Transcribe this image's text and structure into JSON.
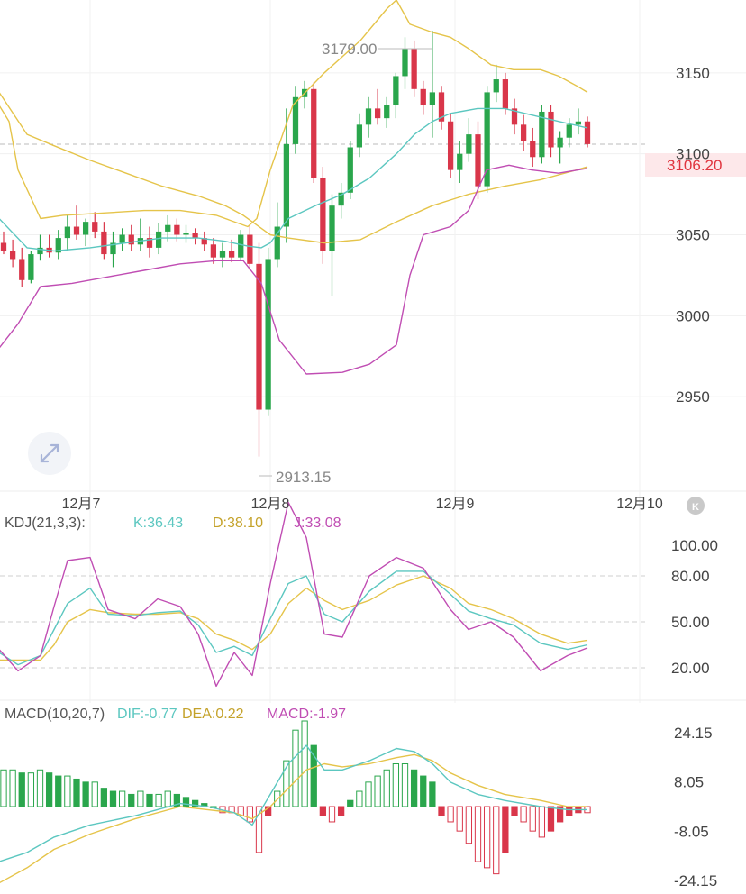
{
  "colors": {
    "up": "#2aa64c",
    "down": "#d9364a",
    "boll_upper": "#e5c44a",
    "boll_mid": "#5cc7c0",
    "boll_lower": "#c04db3",
    "k": "#5cc7c0",
    "d": "#e5c44a",
    "j": "#c04db3",
    "dif": "#5cc7c0",
    "dea": "#e5c44a",
    "macd": "#c04db3",
    "price_tag": "#e0353f"
  },
  "icons": {
    "expand": "expand-arrows-icon",
    "k_badge": "k-badge-icon"
  },
  "chart_data": [
    {
      "type": "candlestick",
      "ylim": [
        2900,
        3195
      ],
      "yticks": [
        "3150",
        "3100",
        "3050",
        "3000",
        "2950"
      ],
      "xticks": [
        "12月7",
        "12月8",
        "12月9",
        "12月10"
      ],
      "current_price": "3106.20",
      "high_annotation": "3179.00",
      "low_annotation": "2913.15",
      "candles": [
        [
          3045,
          3052,
          3038,
          3040
        ],
        [
          3040,
          3047,
          3030,
          3035
        ],
        [
          3035,
          3042,
          3018,
          3022
        ],
        [
          3022,
          3040,
          3020,
          3038
        ],
        [
          3038,
          3050,
          3034,
          3042
        ],
        [
          3042,
          3050,
          3036,
          3039
        ],
        [
          3039,
          3053,
          3035,
          3048
        ],
        [
          3048,
          3062,
          3040,
          3055
        ],
        [
          3055,
          3068,
          3047,
          3050
        ],
        [
          3050,
          3060,
          3043,
          3058
        ],
        [
          3058,
          3064,
          3048,
          3052
        ],
        [
          3052,
          3058,
          3035,
          3038
        ],
        [
          3038,
          3052,
          3030,
          3045
        ],
        [
          3045,
          3054,
          3040,
          3050
        ],
        [
          3050,
          3056,
          3040,
          3044
        ],
        [
          3044,
          3060,
          3040,
          3048
        ],
        [
          3048,
          3055,
          3036,
          3042
        ],
        [
          3042,
          3057,
          3038,
          3052
        ],
        [
          3052,
          3062,
          3046,
          3056
        ],
        [
          3056,
          3060,
          3046,
          3050
        ],
        [
          3050,
          3056,
          3045,
          3051
        ],
        [
          3051,
          3054,
          3044,
          3048
        ],
        [
          3048,
          3052,
          3040,
          3044
        ],
        [
          3044,
          3048,
          3032,
          3036
        ],
        [
          3036,
          3045,
          3030,
          3040
        ],
        [
          3040,
          3047,
          3033,
          3036
        ],
        [
          3036,
          3053,
          3034,
          3050
        ],
        [
          3050,
          3056,
          3028,
          3032
        ],
        [
          3032,
          3045,
          2913,
          2942
        ],
        [
          2942,
          3042,
          2938,
          3035
        ],
        [
          3035,
          3070,
          3030,
          3055
        ],
        [
          3055,
          3128,
          3045,
          3106
        ],
        [
          3106,
          3142,
          3100,
          3135
        ],
        [
          3135,
          3145,
          3128,
          3140
        ],
        [
          3140,
          3144,
          3082,
          3085
        ],
        [
          3085,
          3092,
          3032,
          3040
        ],
        [
          3040,
          3075,
          3012,
          3068
        ],
        [
          3068,
          3082,
          3060,
          3076
        ],
        [
          3076,
          3108,
          3072,
          3104
        ],
        [
          3104,
          3125,
          3098,
          3118
        ],
        [
          3118,
          3135,
          3110,
          3128
        ],
        [
          3128,
          3140,
          3118,
          3122
        ],
        [
          3122,
          3135,
          3116,
          3130
        ],
        [
          3130,
          3150,
          3122,
          3148
        ],
        [
          3148,
          3172,
          3140,
          3165
        ],
        [
          3165,
          3170,
          3135,
          3140
        ],
        [
          3140,
          3145,
          3124,
          3130
        ],
        [
          3130,
          3176,
          3110,
          3138
        ],
        [
          3138,
          3142,
          3115,
          3120
        ],
        [
          3120,
          3125,
          3085,
          3090
        ],
        [
          3090,
          3108,
          3082,
          3100
        ],
        [
          3100,
          3122,
          3095,
          3112
        ],
        [
          3112,
          3120,
          3072,
          3080
        ],
        [
          3080,
          3142,
          3076,
          3138
        ],
        [
          3138,
          3155,
          3132,
          3146
        ],
        [
          3146,
          3150,
          3124,
          3128
        ],
        [
          3128,
          3134,
          3112,
          3118
        ],
        [
          3118,
          3124,
          3102,
          3108
        ],
        [
          3108,
          3116,
          3092,
          3098
        ],
        [
          3098,
          3130,
          3094,
          3126
        ],
        [
          3126,
          3130,
          3098,
          3104
        ],
        [
          3104,
          3114,
          3094,
          3110
        ],
        [
          3110,
          3122,
          3104,
          3118
        ],
        [
          3118,
          3128,
          3112,
          3120
        ],
        [
          3120,
          3123,
          3104,
          3106
        ]
      ],
      "boll_upper": [
        [
          -1,
          3130
        ],
        [
          10,
          3120
        ],
        [
          20,
          3090
        ],
        [
          45,
          3060
        ],
        [
          70,
          3062
        ],
        [
          100,
          3063
        ],
        [
          160,
          3065
        ],
        [
          200,
          3065
        ],
        [
          240,
          3062
        ],
        [
          275,
          3055
        ],
        [
          285,
          3060
        ],
        [
          300,
          3090
        ],
        [
          325,
          3130
        ],
        [
          360,
          3150
        ],
        [
          400,
          3170
        ],
        [
          430,
          3190
        ],
        [
          440,
          3195
        ],
        [
          455,
          3180
        ],
        [
          480,
          3175
        ],
        [
          500,
          3172
        ],
        [
          520,
          3165
        ],
        [
          545,
          3155
        ],
        [
          570,
          3152
        ],
        [
          600,
          3152
        ],
        [
          620,
          3148
        ],
        [
          640,
          3142
        ],
        [
          652,
          3138
        ]
      ],
      "boll_mid": [
        [
          -1,
          3060
        ],
        [
          30,
          3042
        ],
        [
          60,
          3040
        ],
        [
          100,
          3042
        ],
        [
          140,
          3045
        ],
        [
          180,
          3048
        ],
        [
          220,
          3048
        ],
        [
          250,
          3046
        ],
        [
          275,
          3043
        ],
        [
          290,
          3042
        ],
        [
          300,
          3045
        ],
        [
          320,
          3060
        ],
        [
          350,
          3068
        ],
        [
          380,
          3075
        ],
        [
          410,
          3085
        ],
        [
          440,
          3100
        ],
        [
          460,
          3112
        ],
        [
          480,
          3120
        ],
        [
          500,
          3125
        ],
        [
          530,
          3128
        ],
        [
          560,
          3128
        ],
        [
          590,
          3124
        ],
        [
          620,
          3120
        ],
        [
          652,
          3116
        ]
      ],
      "boll_lower": [
        [
          -1,
          2980
        ],
        [
          20,
          2995
        ],
        [
          45,
          3018
        ],
        [
          80,
          3020
        ],
        [
          120,
          3024
        ],
        [
          160,
          3028
        ],
        [
          200,
          3032
        ],
        [
          240,
          3034
        ],
        [
          270,
          3034
        ],
        [
          290,
          3020
        ],
        [
          310,
          2985
        ],
        [
          340,
          2964
        ],
        [
          380,
          2965
        ],
        [
          410,
          2970
        ],
        [
          440,
          2982
        ],
        [
          455,
          3025
        ],
        [
          470,
          3050
        ],
        [
          500,
          3055
        ],
        [
          520,
          3065
        ],
        [
          540,
          3090
        ],
        [
          565,
          3093
        ],
        [
          590,
          3090
        ],
        [
          620,
          3088
        ],
        [
          652,
          3091
        ]
      ],
      "boll_outer": [
        [
          -1,
          3138
        ],
        [
          30,
          3112
        ],
        [
          60,
          3105
        ],
        [
          100,
          3096
        ],
        [
          140,
          3088
        ],
        [
          180,
          3080
        ],
        [
          220,
          3074
        ],
        [
          250,
          3068
        ],
        [
          270,
          3062
        ],
        [
          300,
          3050
        ],
        [
          320,
          3048
        ],
        [
          360,
          3045
        ],
        [
          400,
          3047
        ],
        [
          440,
          3058
        ],
        [
          480,
          3068
        ],
        [
          520,
          3075
        ],
        [
          560,
          3080
        ],
        [
          600,
          3084
        ],
        [
          640,
          3090
        ],
        [
          652,
          3092
        ]
      ]
    },
    {
      "type": "line",
      "title": "KDJ(21,3,3):",
      "series": [
        {
          "name": "K",
          "value": "36.43"
        },
        {
          "name": "D",
          "value": "38.10"
        },
        {
          "name": "J",
          "value": "33.08"
        }
      ],
      "ylim": [
        0,
        110
      ],
      "yticks": [
        "100.00",
        "80.00",
        "50.00",
        "20.00"
      ],
      "k_line": [
        [
          -1,
          30
        ],
        [
          20,
          22
        ],
        [
          45,
          28
        ],
        [
          60,
          45
        ],
        [
          75,
          62
        ],
        [
          100,
          72
        ],
        [
          120,
          55
        ],
        [
          150,
          54
        ],
        [
          175,
          56
        ],
        [
          200,
          57
        ],
        [
          220,
          48
        ],
        [
          240,
          30
        ],
        [
          260,
          34
        ],
        [
          280,
          28
        ],
        [
          300,
          52
        ],
        [
          320,
          75
        ],
        [
          340,
          80
        ],
        [
          360,
          55
        ],
        [
          380,
          50
        ],
        [
          410,
          70
        ],
        [
          440,
          83
        ],
        [
          470,
          83
        ],
        [
          500,
          68
        ],
        [
          520,
          57
        ],
        [
          545,
          52
        ],
        [
          570,
          48
        ],
        [
          600,
          36
        ],
        [
          630,
          32
        ],
        [
          652,
          35
        ]
      ],
      "d_line": [
        [
          -1,
          25
        ],
        [
          20,
          25
        ],
        [
          45,
          25
        ],
        [
          60,
          35
        ],
        [
          75,
          50
        ],
        [
          100,
          58
        ],
        [
          120,
          56
        ],
        [
          150,
          55
        ],
        [
          175,
          55
        ],
        [
          200,
          56
        ],
        [
          220,
          52
        ],
        [
          240,
          42
        ],
        [
          260,
          38
        ],
        [
          280,
          32
        ],
        [
          300,
          42
        ],
        [
          320,
          62
        ],
        [
          340,
          72
        ],
        [
          360,
          64
        ],
        [
          380,
          58
        ],
        [
          410,
          64
        ],
        [
          440,
          74
        ],
        [
          470,
          80
        ],
        [
          500,
          72
        ],
        [
          520,
          62
        ],
        [
          545,
          58
        ],
        [
          570,
          52
        ],
        [
          600,
          42
        ],
        [
          630,
          36
        ],
        [
          652,
          38
        ]
      ],
      "j_line": [
        [
          -1,
          32
        ],
        [
          20,
          18
        ],
        [
          45,
          28
        ],
        [
          60,
          60
        ],
        [
          75,
          90
        ],
        [
          100,
          92
        ],
        [
          120,
          58
        ],
        [
          150,
          52
        ],
        [
          175,
          65
        ],
        [
          200,
          60
        ],
        [
          220,
          42
        ],
        [
          240,
          8
        ],
        [
          260,
          30
        ],
        [
          280,
          15
        ],
        [
          300,
          75
        ],
        [
          320,
          128
        ],
        [
          340,
          105
        ],
        [
          360,
          42
        ],
        [
          380,
          40
        ],
        [
          410,
          80
        ],
        [
          440,
          92
        ],
        [
          470,
          85
        ],
        [
          500,
          58
        ],
        [
          520,
          45
        ],
        [
          545,
          50
        ],
        [
          570,
          40
        ],
        [
          600,
          18
        ],
        [
          630,
          28
        ],
        [
          652,
          33
        ]
      ]
    },
    {
      "type": "bar",
      "title": "MACD(10,20,7)",
      "series": [
        {
          "name": "DIF",
          "value": "-0.77"
        },
        {
          "name": "DEA",
          "value": "0.22"
        },
        {
          "name": "MACD",
          "value": "-1.97"
        }
      ],
      "ylim": [
        -28,
        28
      ],
      "yticks": [
        "24.15",
        "8.05",
        "-8.05",
        "-24.15"
      ],
      "histogram": [
        12,
        12,
        11,
        11,
        12,
        11,
        10,
        10,
        9,
        8,
        8,
        6,
        5,
        5,
        4,
        5,
        4,
        4,
        5,
        4,
        3,
        2,
        1,
        0,
        -2,
        -2,
        -3,
        -5,
        -15,
        -3,
        5,
        15,
        25,
        28,
        20,
        -3,
        -5,
        -3,
        2,
        5,
        8,
        10,
        12,
        14,
        14,
        12,
        10,
        8,
        -3,
        -5,
        -8,
        -12,
        -18,
        -20,
        -22,
        -15,
        -3,
        -5,
        -8,
        -10,
        -8,
        -5,
        -3,
        -2,
        -2
      ],
      "dif_line": [
        [
          -1,
          -18
        ],
        [
          30,
          -15
        ],
        [
          60,
          -10
        ],
        [
          100,
          -6
        ],
        [
          150,
          -3
        ],
        [
          200,
          1
        ],
        [
          230,
          0
        ],
        [
          260,
          -2
        ],
        [
          280,
          -6
        ],
        [
          300,
          4
        ],
        [
          320,
          14
        ],
        [
          340,
          20
        ],
        [
          360,
          12
        ],
        [
          380,
          12
        ],
        [
          410,
          15
        ],
        [
          440,
          19
        ],
        [
          460,
          18
        ],
        [
          480,
          14
        ],
        [
          500,
          8
        ],
        [
          530,
          4
        ],
        [
          560,
          2
        ],
        [
          600,
          0
        ],
        [
          630,
          -1
        ],
        [
          652,
          -1
        ]
      ],
      "dea_line": [
        [
          -1,
          -25
        ],
        [
          30,
          -20
        ],
        [
          60,
          -14
        ],
        [
          100,
          -9
        ],
        [
          150,
          -4
        ],
        [
          200,
          0
        ],
        [
          230,
          -1
        ],
        [
          260,
          -2
        ],
        [
          280,
          -4
        ],
        [
          300,
          0
        ],
        [
          320,
          6
        ],
        [
          340,
          12
        ],
        [
          360,
          14
        ],
        [
          380,
          13
        ],
        [
          410,
          14
        ],
        [
          440,
          16
        ],
        [
          460,
          17
        ],
        [
          480,
          15
        ],
        [
          500,
          11
        ],
        [
          530,
          7
        ],
        [
          560,
          4
        ],
        [
          600,
          2
        ],
        [
          630,
          0
        ],
        [
          652,
          0
        ]
      ]
    }
  ]
}
